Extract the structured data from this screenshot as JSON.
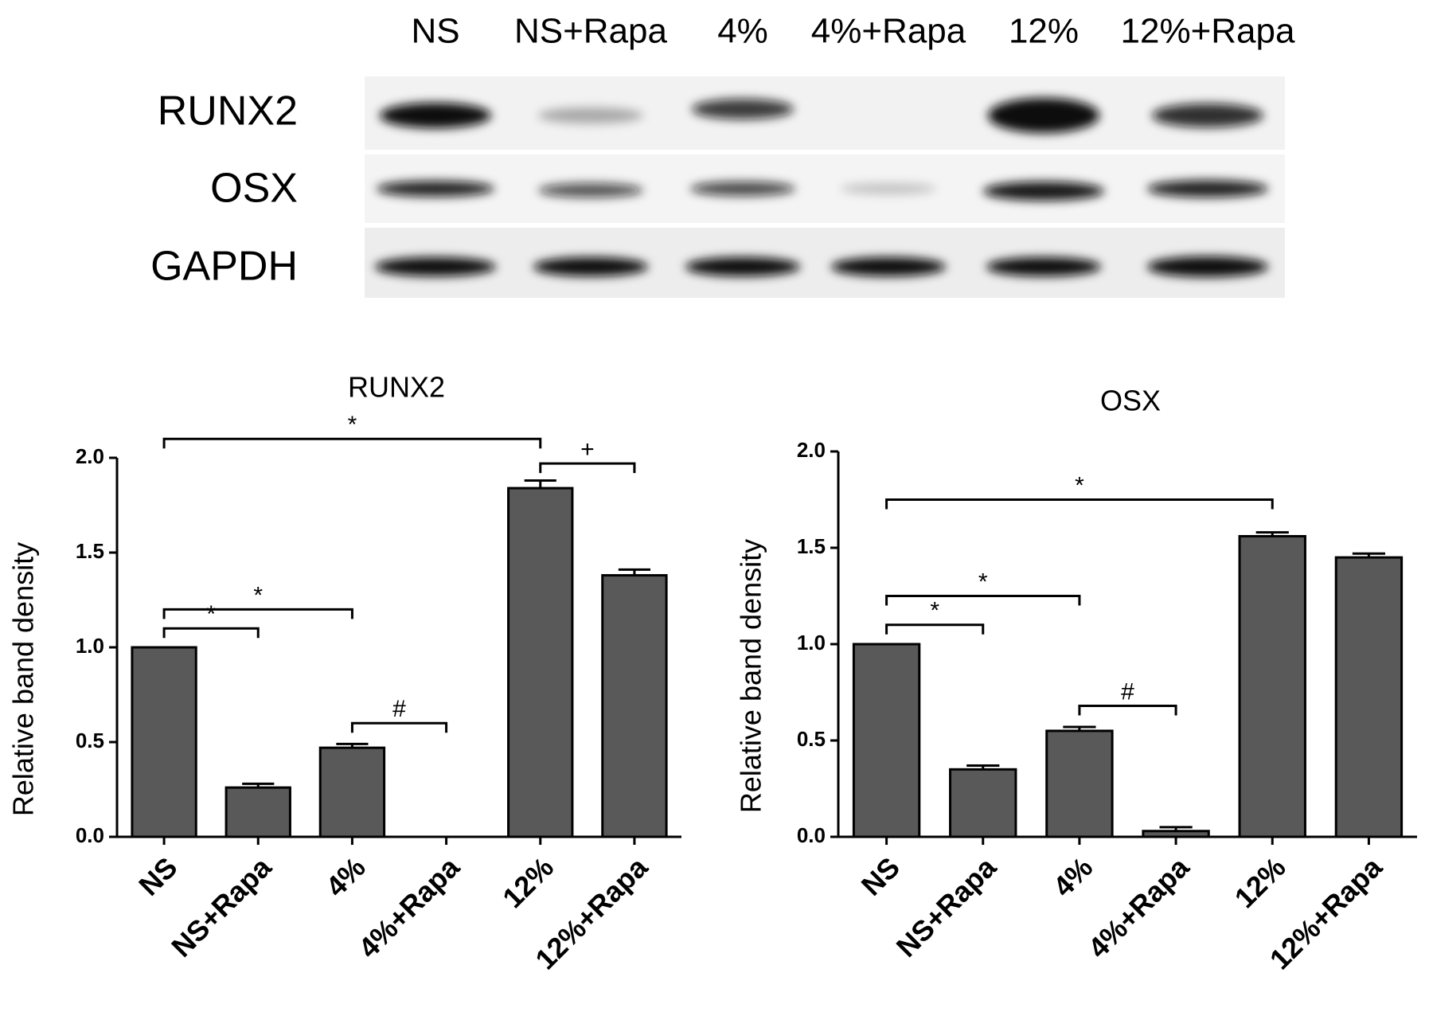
{
  "blot": {
    "lanes": [
      "NS",
      "NS+Rapa",
      "4%",
      "4%+Rapa",
      "12%",
      "12%+Rapa"
    ],
    "rows": [
      "RUNX2",
      "OSX",
      "GAPDH"
    ]
  },
  "chart_data": [
    {
      "type": "bar",
      "title": "RUNX2",
      "y_label": "Relative band density",
      "categories": [
        "NS",
        "NS+Rapa",
        "4%",
        "4%+Rapa",
        "12%",
        "12%+Rapa"
      ],
      "values": [
        1.0,
        0.26,
        0.47,
        0,
        1.84,
        1.38
      ],
      "errors": [
        0,
        0.02,
        0.02,
        0,
        0.04,
        0.03
      ],
      "color": "#595959",
      "ylim": [
        0,
        2
      ],
      "yticks": [
        {
          "value": 0,
          "label": "0.0"
        },
        0.5,
        {
          "value": 1,
          "label": "1.0"
        },
        1.5,
        {
          "value": 2,
          "label": "2.0"
        }
      ],
      "annotations": [
        {
          "text": "*",
          "between": [
            "NS",
            "NS+Rapa"
          ]
        },
        {
          "text": "*",
          "between": [
            "NS",
            "4%"
          ]
        },
        {
          "text": "#",
          "between": [
            "4%",
            "4%+Rapa"
          ]
        },
        {
          "text": "*",
          "between": [
            "NS",
            "12%"
          ]
        },
        {
          "text": "+",
          "between": [
            "12%",
            "12%+Rapa"
          ]
        }
      ]
    },
    {
      "type": "bar",
      "title": "OSX",
      "y_label": "Relative band density",
      "categories": [
        "NS",
        "NS+Rapa",
        "4%",
        "4%+Rapa",
        "12%",
        "12%+Rapa"
      ],
      "values": [
        1.0,
        0.35,
        0.55,
        0.03,
        1.56,
        1.45
      ],
      "errors": [
        0,
        0.02,
        0.02,
        0.02,
        0.02,
        0.02
      ],
      "color": "#595959",
      "ylim": [
        0,
        2
      ],
      "yticks": [
        {
          "value": 0,
          "label": "0.0"
        },
        0.5,
        {
          "value": 1,
          "label": "1.0"
        },
        1.5,
        {
          "value": 2,
          "label": "2.0"
        }
      ],
      "annotations": [
        {
          "text": "*",
          "between": [
            "NS",
            "NS+Rapa"
          ]
        },
        {
          "text": "*",
          "between": [
            "NS",
            "4%"
          ]
        },
        {
          "text": "#",
          "between": [
            "4%",
            "4%+Rapa"
          ]
        },
        {
          "text": "*",
          "between": [
            "NS",
            "12%"
          ]
        }
      ]
    }
  ]
}
